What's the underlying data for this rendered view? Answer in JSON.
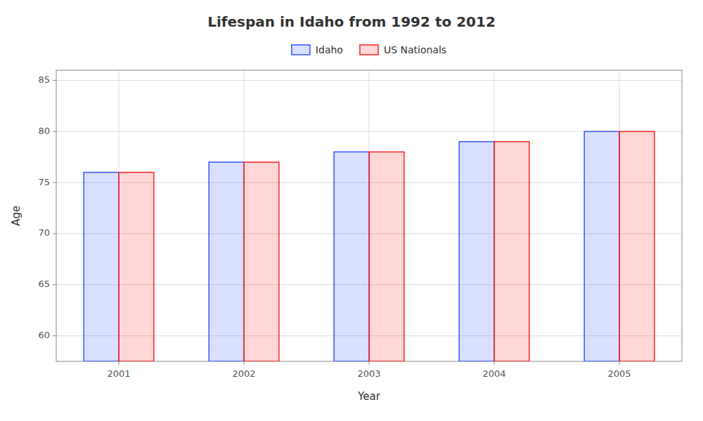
{
  "chart_data": {
    "type": "bar",
    "title": "Lifespan in Idaho from 1992 to 2012",
    "x_label": "Year",
    "y_label": "Age",
    "categories": [
      "2001",
      "2002",
      "2003",
      "2004",
      "2005"
    ],
    "series": [
      {
        "name": "Idaho",
        "color": "#3355ff",
        "values": [
          76,
          77,
          78,
          79,
          80
        ]
      },
      {
        "name": "US Nationals",
        "color": "#ff2222",
        "values": [
          76,
          77,
          78,
          79,
          80
        ]
      }
    ],
    "ylim": [
      57.5,
      86
    ],
    "yticks": [
      60,
      65,
      70,
      75,
      80,
      85
    ],
    "grid": true,
    "legend": "upper center"
  }
}
